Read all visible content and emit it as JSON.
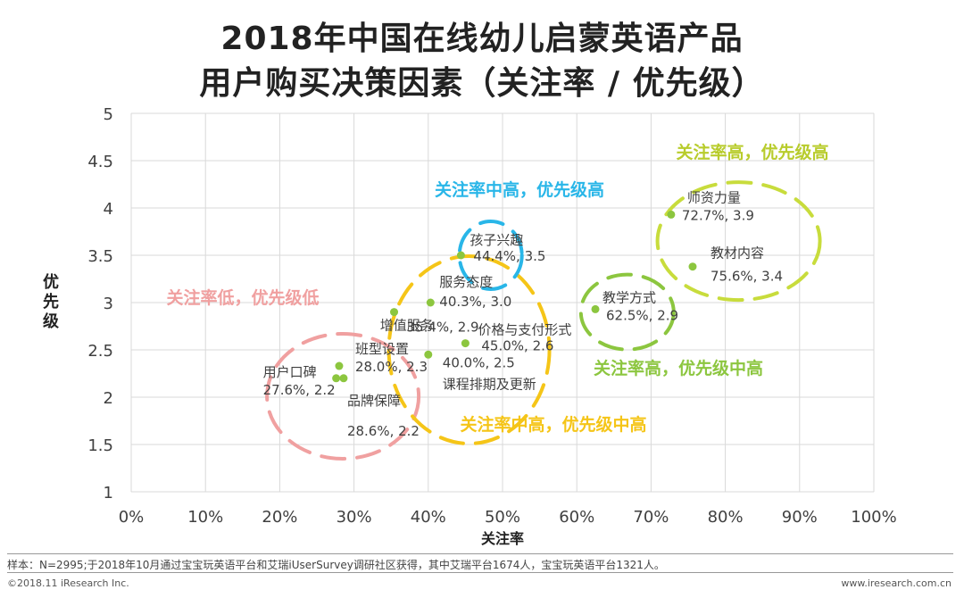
{
  "header": {
    "title_line1": "2018年中国在线幼儿启蒙英语产品",
    "title_line2": "用户购买决策因素（关注率 / 优先级）"
  },
  "colors": {
    "point": "#8cc63f",
    "grid": "#d9d9d9",
    "low": "#f0a0a0",
    "mid_mid": "#f5c518",
    "mid_high": "#29b6e8",
    "high_mid": "#8cc63f",
    "high_high": "#c8dc3c",
    "high_high_text": "#b8cc2c"
  },
  "chart_data": {
    "type": "scatter",
    "xlabel": "关注率",
    "ylabel": "优先级",
    "xlim": [
      0,
      100
    ],
    "ylim": [
      1,
      5
    ],
    "x_ticks": [
      "0%",
      "10%",
      "20%",
      "30%",
      "40%",
      "50%",
      "60%",
      "70%",
      "80%",
      "90%",
      "100%"
    ],
    "y_ticks": [
      "1",
      "1.5",
      "2",
      "2.5",
      "3",
      "3.5",
      "4",
      "4.5",
      "5"
    ],
    "points": [
      {
        "name": "用户口碑",
        "value_label": "27.6%, 2.2",
        "x": 27.6,
        "y": 2.2
      },
      {
        "name": "品牌保障",
        "value_label": "28.6%, 2.2",
        "x": 28.6,
        "y": 2.2
      },
      {
        "name": "班型设置",
        "value_label": "28.0%, 2.3",
        "x": 28.0,
        "y": 2.33
      },
      {
        "name": "增值服务",
        "value_label": "35.4%, 2.9",
        "x": 35.4,
        "y": 2.9
      },
      {
        "name": "服务态度",
        "value_label": "40.3%, 3.0",
        "x": 40.3,
        "y": 3.0
      },
      {
        "name": "课程排期及更新",
        "value_label": "40.0%, 2.5",
        "x": 40.0,
        "y": 2.45
      },
      {
        "name": "价格与支付形式",
        "value_label": "45.0%, 2.6",
        "x": 45.0,
        "y": 2.57
      },
      {
        "name": "孩子兴趣",
        "value_label": "44.4%, 3.5",
        "x": 44.4,
        "y": 3.5
      },
      {
        "name": "教学方式",
        "value_label": "62.5%, 2.9",
        "x": 62.5,
        "y": 2.93
      },
      {
        "name": "师资力量",
        "value_label": "72.7%, 3.9",
        "x": 72.7,
        "y": 3.93
      },
      {
        "name": "教材内容",
        "value_label": "75.6%, 3.4",
        "x": 75.6,
        "y": 3.38
      }
    ],
    "groups": [
      {
        "label": "关注率低，优先级低",
        "color_key": "low"
      },
      {
        "label": "关注率中高，优先级中高",
        "color_key": "mid_mid"
      },
      {
        "label": "关注率中高，优先级高",
        "color_key": "mid_high"
      },
      {
        "label": "关注率高，优先级中高",
        "color_key": "high_mid"
      },
      {
        "label": "关注率高，优先级高",
        "color_key": "high_high"
      }
    ]
  },
  "footer": {
    "note": "样本：N=2995;于2018年10月通过宝宝玩英语平台和艾瑞iUserSurvey调研社区获得，其中艾瑞平台1674人，宝宝玩英语平台1321人。",
    "copyright": "©2018.11 iResearch Inc.",
    "site": "www.iresearch.com.cn"
  }
}
